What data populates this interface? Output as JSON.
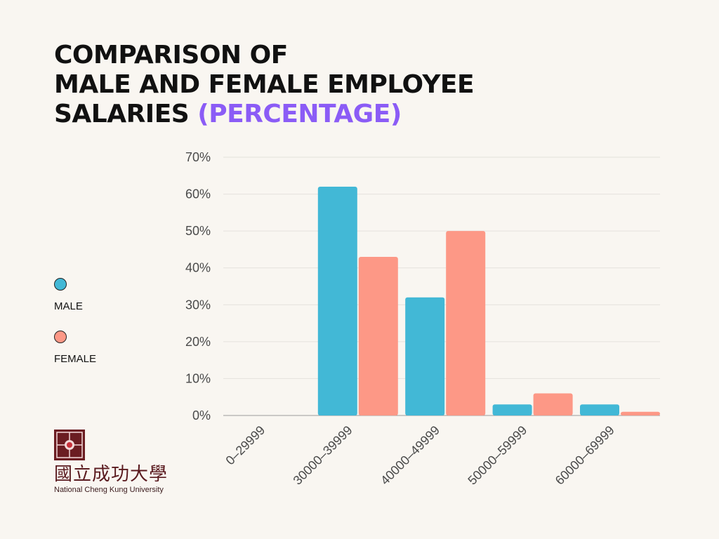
{
  "title": {
    "line1": "COMPARISON OF",
    "line2": "MALE AND FEMALE EMPLOYEE",
    "line3_main": "SALARIES ",
    "line3_accent": "(PERCENTAGE)"
  },
  "legend": [
    {
      "label": "MALE",
      "color": "#42b8d6"
    },
    {
      "label": "FEMALE",
      "color": "#fd9886"
    }
  ],
  "logo": {
    "cjk": "國立成功大學",
    "english": "National Cheng Kung University",
    "color": "#6b1d22"
  },
  "chart_data": {
    "type": "bar",
    "categories": [
      "0–29999",
      "30000–39999",
      "40000–49999",
      "50000–59999",
      "60000–69999"
    ],
    "series": [
      {
        "name": "MALE",
        "color": "#42b8d6",
        "values": [
          0,
          62,
          32,
          3,
          3
        ]
      },
      {
        "name": "FEMALE",
        "color": "#fd9886",
        "values": [
          0,
          43,
          50,
          6,
          1
        ]
      }
    ],
    "ylim": [
      0,
      70
    ],
    "yticks": [
      0,
      10,
      20,
      30,
      40,
      50,
      60,
      70
    ],
    "ytick_suffix": "%",
    "grid": true,
    "legend_position": "left"
  }
}
